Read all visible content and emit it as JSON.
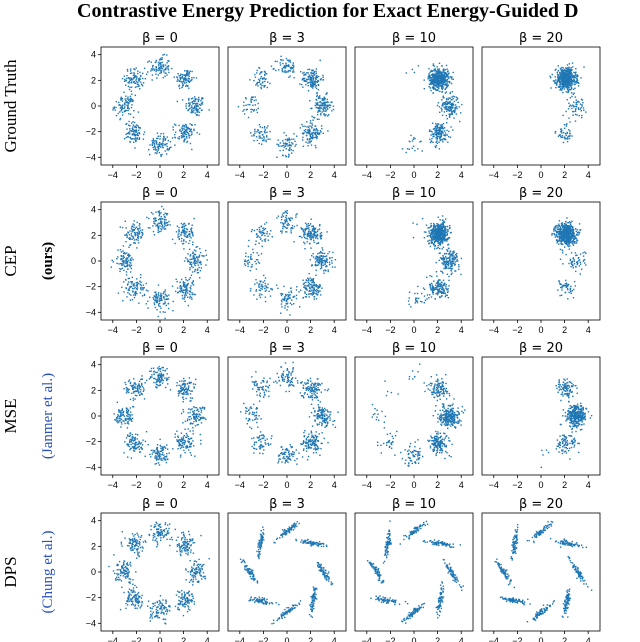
{
  "title": "Contrastive Energy Prediction for Exact Energy-Guided D",
  "colors": {
    "points": "#1f77b4",
    "citation": "#2a52be",
    "axes": "#000000"
  },
  "chart_data": {
    "type": "scatter",
    "xlim": [
      -5,
      5
    ],
    "ylim": [
      -4.6,
      4.6
    ],
    "x_ticks": [
      -4,
      -2,
      0,
      2,
      4
    ],
    "y_ticks": [
      -4,
      -2,
      0,
      2,
      4
    ],
    "columns": [
      "β = 0",
      "β = 3",
      "β = 10",
      "β = 20"
    ],
    "rows": [
      {
        "label": "Ground Truth",
        "sublabel": "",
        "sublabel_color": ""
      },
      {
        "label": "CEP",
        "sublabel": "(ours)",
        "sublabel_color": "#000000"
      },
      {
        "label": "MSE",
        "sublabel": "(Janmer et al.)",
        "sublabel_color": "#2a52be"
      },
      {
        "label": "DPS",
        "sublabel": "(Chung et al.)",
        "sublabel_color": "#2a52be"
      }
    ],
    "clusters": [
      {
        "x": 3.0,
        "y": 0.0
      },
      {
        "x": 2.12,
        "y": 2.12
      },
      {
        "x": 0.0,
        "y": 3.0
      },
      {
        "x": -2.12,
        "y": 2.12
      },
      {
        "x": -3.0,
        "y": 0.0
      },
      {
        "x": -2.12,
        "y": -2.12
      },
      {
        "x": 0.0,
        "y": -3.0
      },
      {
        "x": 2.12,
        "y": -2.12
      }
    ],
    "panel_weights": {
      "ground_truth": [
        [
          1,
          1,
          1,
          1,
          1,
          1,
          1,
          1
        ],
        [
          1.3,
          1.5,
          0.7,
          0.55,
          0.4,
          0.55,
          0.7,
          1.3
        ],
        [
          1.6,
          5.0,
          0.04,
          0.0,
          0.0,
          0.0,
          0.2,
          1.6
        ],
        [
          0.6,
          6.0,
          0.0,
          0.0,
          0.0,
          0.0,
          0.0,
          0.5
        ]
      ],
      "cep": [
        [
          1,
          1,
          1,
          1,
          1,
          1,
          1,
          1
        ],
        [
          1.3,
          1.5,
          0.7,
          0.55,
          0.4,
          0.55,
          0.7,
          1.3
        ],
        [
          1.6,
          5.0,
          0.04,
          0.0,
          0.0,
          0.0,
          0.25,
          1.6
        ],
        [
          0.6,
          6.0,
          0.0,
          0.0,
          0.0,
          0.0,
          0.0,
          0.5
        ]
      ],
      "mse": [
        [
          1,
          1,
          1,
          1,
          1,
          1,
          1,
          1
        ],
        [
          1.3,
          1.2,
          0.8,
          0.6,
          0.5,
          0.6,
          0.8,
          1.3
        ],
        [
          2.6,
          1.2,
          0.1,
          0.05,
          0.15,
          0.3,
          0.7,
          1.6
        ],
        [
          3.5,
          1.0,
          0.0,
          0.0,
          0.0,
          0.0,
          0.05,
          0.9
        ]
      ],
      "dps": [
        [
          1,
          1,
          1,
          1,
          1,
          1,
          1,
          1
        ],
        [
          0.8,
          0.8,
          0.8,
          0.8,
          0.8,
          0.8,
          0.8,
          0.8
        ],
        [
          0.8,
          0.8,
          0.8,
          0.8,
          0.8,
          0.8,
          0.8,
          0.8
        ],
        [
          0.8,
          0.8,
          0.8,
          0.8,
          0.8,
          0.8,
          0.8,
          0.8
        ]
      ]
    },
    "points_per_unit_weight": 90
  }
}
